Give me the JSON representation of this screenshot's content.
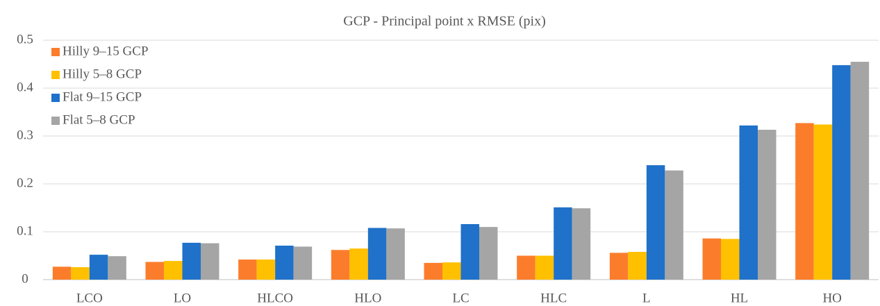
{
  "chart_data": {
    "type": "bar",
    "title": "GCP - Principal point x RMSE (pix)",
    "categories": [
      "LCO",
      "LO",
      "HLCO",
      "HLO",
      "LC",
      "HLC",
      "L",
      "HL",
      "HO"
    ],
    "series": [
      {
        "name": "Hilly 9–15 GCP",
        "color": "#fb7d2c",
        "values": [
          0.027,
          0.037,
          0.042,
          0.062,
          0.035,
          0.05,
          0.056,
          0.086,
          0.327
        ]
      },
      {
        "name": "Hilly 5–8 GCP",
        "color": "#ffc000",
        "values": [
          0.026,
          0.039,
          0.042,
          0.065,
          0.036,
          0.05,
          0.058,
          0.085,
          0.324
        ]
      },
      {
        "name": "Flat 9–15 GCP",
        "color": "#1f71c9",
        "values": [
          0.052,
          0.077,
          0.071,
          0.108,
          0.116,
          0.151,
          0.239,
          0.322,
          0.448
        ]
      },
      {
        "name": "Flat 5–8 GCP",
        "color": "#a5a5a5",
        "values": [
          0.049,
          0.076,
          0.069,
          0.107,
          0.11,
          0.149,
          0.228,
          0.313,
          0.455
        ]
      }
    ],
    "ylim": [
      0,
      0.5
    ],
    "yticks": [
      0,
      0.1,
      0.2,
      0.3,
      0.4,
      0.5
    ],
    "grid": true,
    "legend": "top-left"
  }
}
